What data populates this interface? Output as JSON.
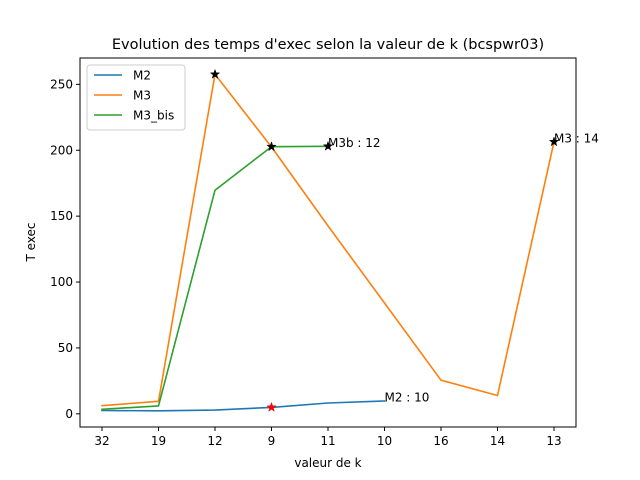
{
  "chart_data": {
    "type": "line",
    "title": "Evolution des temps d'exec selon la valeur de k (bcspwr03)",
    "xlabel": "valeur de k",
    "ylabel": "T exec",
    "categories": [
      "32",
      "19",
      "12",
      "9",
      "11",
      "10",
      "16",
      "14",
      "13"
    ],
    "ylim": [
      -10,
      270
    ],
    "yticks": [
      0,
      50,
      100,
      150,
      200,
      250
    ],
    "grid": false,
    "legend_position": "top-left",
    "series": [
      {
        "name": "M2",
        "color": "#1f77b4",
        "values": [
          2.5,
          2.3,
          2.8,
          4.9,
          8.2,
          9.7,
          null,
          null,
          null
        ]
      },
      {
        "name": "M3",
        "color": "#ff7f0e",
        "values": [
          6.2,
          9.5,
          257.6,
          202.5,
          142.6,
          84.1,
          25.5,
          13.9,
          206.4
        ]
      },
      {
        "name": "M3_bis",
        "color": "#2ca02c",
        "values": [
          3.4,
          6.0,
          169.7,
          202.7,
          203.0,
          null,
          null,
          null,
          null
        ]
      }
    ],
    "markers": [
      {
        "series": "M3",
        "category": "12",
        "value": 257.6,
        "symbol": "star",
        "color": "#000000"
      },
      {
        "series": "M3_bis",
        "category": "9",
        "value": 202.7,
        "symbol": "star",
        "color": "#000000"
      },
      {
        "series": "M3_bis",
        "category": "11",
        "value": 203.0,
        "symbol": "star",
        "color": "#000000"
      },
      {
        "series": "M3",
        "category": "13",
        "value": 206.4,
        "symbol": "star",
        "color": "#000000"
      },
      {
        "series": "M2",
        "category": "9",
        "value": 4.9,
        "symbol": "star",
        "color": "#ff0000"
      }
    ],
    "annotations": [
      {
        "text": "M3b : 12",
        "category": "11",
        "value": 203.0
      },
      {
        "text": "M3 : 14",
        "category": "13",
        "value": 206.4
      },
      {
        "text": "M2 : 10",
        "category": "10",
        "value": 9.7
      }
    ]
  }
}
